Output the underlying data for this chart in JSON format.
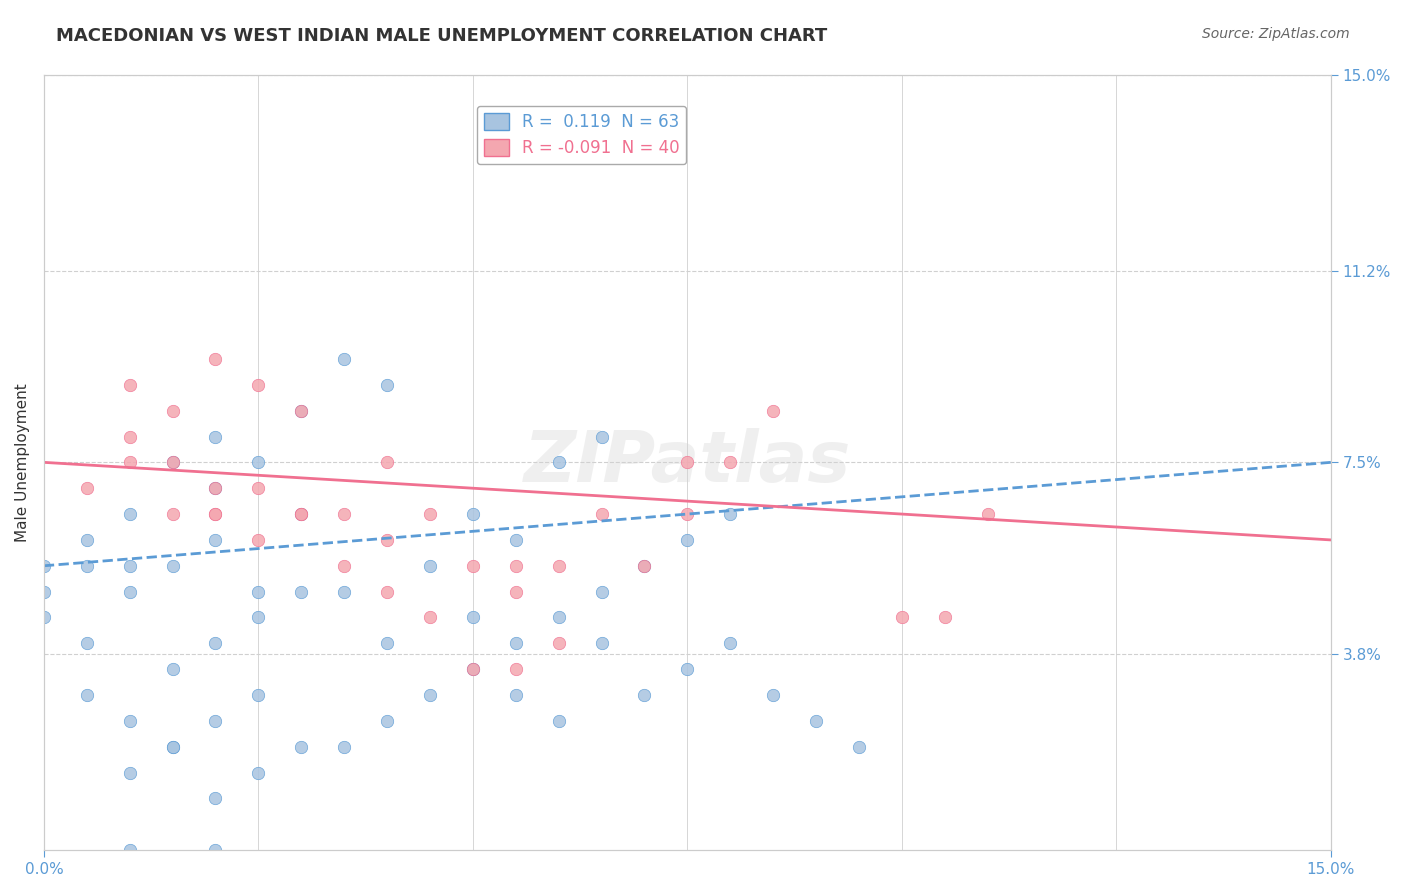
{
  "title": "MACEDONIAN VS WEST INDIAN MALE UNEMPLOYMENT CORRELATION CHART",
  "source": "Source: ZipAtlas.com",
  "xlabel": "",
  "ylabel": "Male Unemployment",
  "xlim": [
    0,
    0.15
  ],
  "ylim": [
    0,
    0.15
  ],
  "xticks": [
    0.0,
    0.15
  ],
  "xtick_labels": [
    "0.0%",
    "15.0%"
  ],
  "ytick_labels_right": [
    "3.8%",
    "7.5%",
    "11.2%",
    "15.0%"
  ],
  "ytick_values_right": [
    0.038,
    0.075,
    0.112,
    0.15
  ],
  "macedonian_color": "#a8c4e0",
  "west_indian_color": "#f4a7b0",
  "macedonian_line_color": "#5b9bd5",
  "west_indian_line_color": "#f07090",
  "R_macedonian": 0.119,
  "N_macedonian": 63,
  "R_west_indian": -0.091,
  "N_west_indian": 40,
  "background_color": "#ffffff",
  "grid_color": "#d0d0d0",
  "watermark": "ZIPatlas",
  "macedonians_x": [
    0.0,
    0.01,
    0.005,
    0.02,
    0.015,
    0.025,
    0.03,
    0.02,
    0.01,
    0.005,
    0.0,
    0.0,
    0.01,
    0.02,
    0.015,
    0.005,
    0.025,
    0.03,
    0.04,
    0.035,
    0.045,
    0.05,
    0.055,
    0.06,
    0.065,
    0.07,
    0.075,
    0.08,
    0.015,
    0.02,
    0.025,
    0.03,
    0.035,
    0.04,
    0.05,
    0.055,
    0.06,
    0.065,
    0.005,
    0.01,
    0.015,
    0.02,
    0.025,
    0.03,
    0.01,
    0.015,
    0.02,
    0.025,
    0.035,
    0.04,
    0.045,
    0.05,
    0.055,
    0.06,
    0.065,
    0.07,
    0.075,
    0.08,
    0.085,
    0.09,
    0.095,
    0.01,
    0.02
  ],
  "macedonians_y": [
    0.055,
    0.055,
    0.06,
    0.06,
    0.055,
    0.05,
    0.065,
    0.07,
    0.065,
    0.055,
    0.05,
    0.045,
    0.05,
    0.04,
    0.035,
    0.04,
    0.045,
    0.05,
    0.04,
    0.05,
    0.055,
    0.045,
    0.03,
    0.025,
    0.04,
    0.03,
    0.035,
    0.04,
    0.075,
    0.08,
    0.075,
    0.085,
    0.095,
    0.09,
    0.065,
    0.06,
    0.075,
    0.08,
    0.03,
    0.025,
    0.02,
    0.025,
    0.03,
    0.02,
    0.015,
    0.02,
    0.01,
    0.015,
    0.02,
    0.025,
    0.03,
    0.035,
    0.04,
    0.045,
    0.05,
    0.055,
    0.06,
    0.065,
    0.03,
    0.025,
    0.02,
    0.0,
    0.0
  ],
  "west_indians_x": [
    0.005,
    0.01,
    0.015,
    0.02,
    0.015,
    0.01,
    0.02,
    0.025,
    0.03,
    0.04,
    0.045,
    0.05,
    0.055,
    0.055,
    0.06,
    0.065,
    0.075,
    0.1,
    0.105,
    0.11,
    0.07,
    0.075,
    0.08,
    0.085,
    0.02,
    0.025,
    0.03,
    0.035,
    0.04,
    0.01,
    0.015,
    0.02,
    0.025,
    0.03,
    0.035,
    0.04,
    0.045,
    0.05,
    0.055,
    0.06
  ],
  "west_indians_y": [
    0.07,
    0.075,
    0.065,
    0.07,
    0.075,
    0.08,
    0.065,
    0.06,
    0.065,
    0.075,
    0.065,
    0.055,
    0.05,
    0.055,
    0.055,
    0.065,
    0.075,
    0.045,
    0.045,
    0.065,
    0.055,
    0.065,
    0.075,
    0.085,
    0.065,
    0.07,
    0.065,
    0.055,
    0.06,
    0.09,
    0.085,
    0.095,
    0.09,
    0.085,
    0.065,
    0.05,
    0.045,
    0.035,
    0.035,
    0.04
  ]
}
